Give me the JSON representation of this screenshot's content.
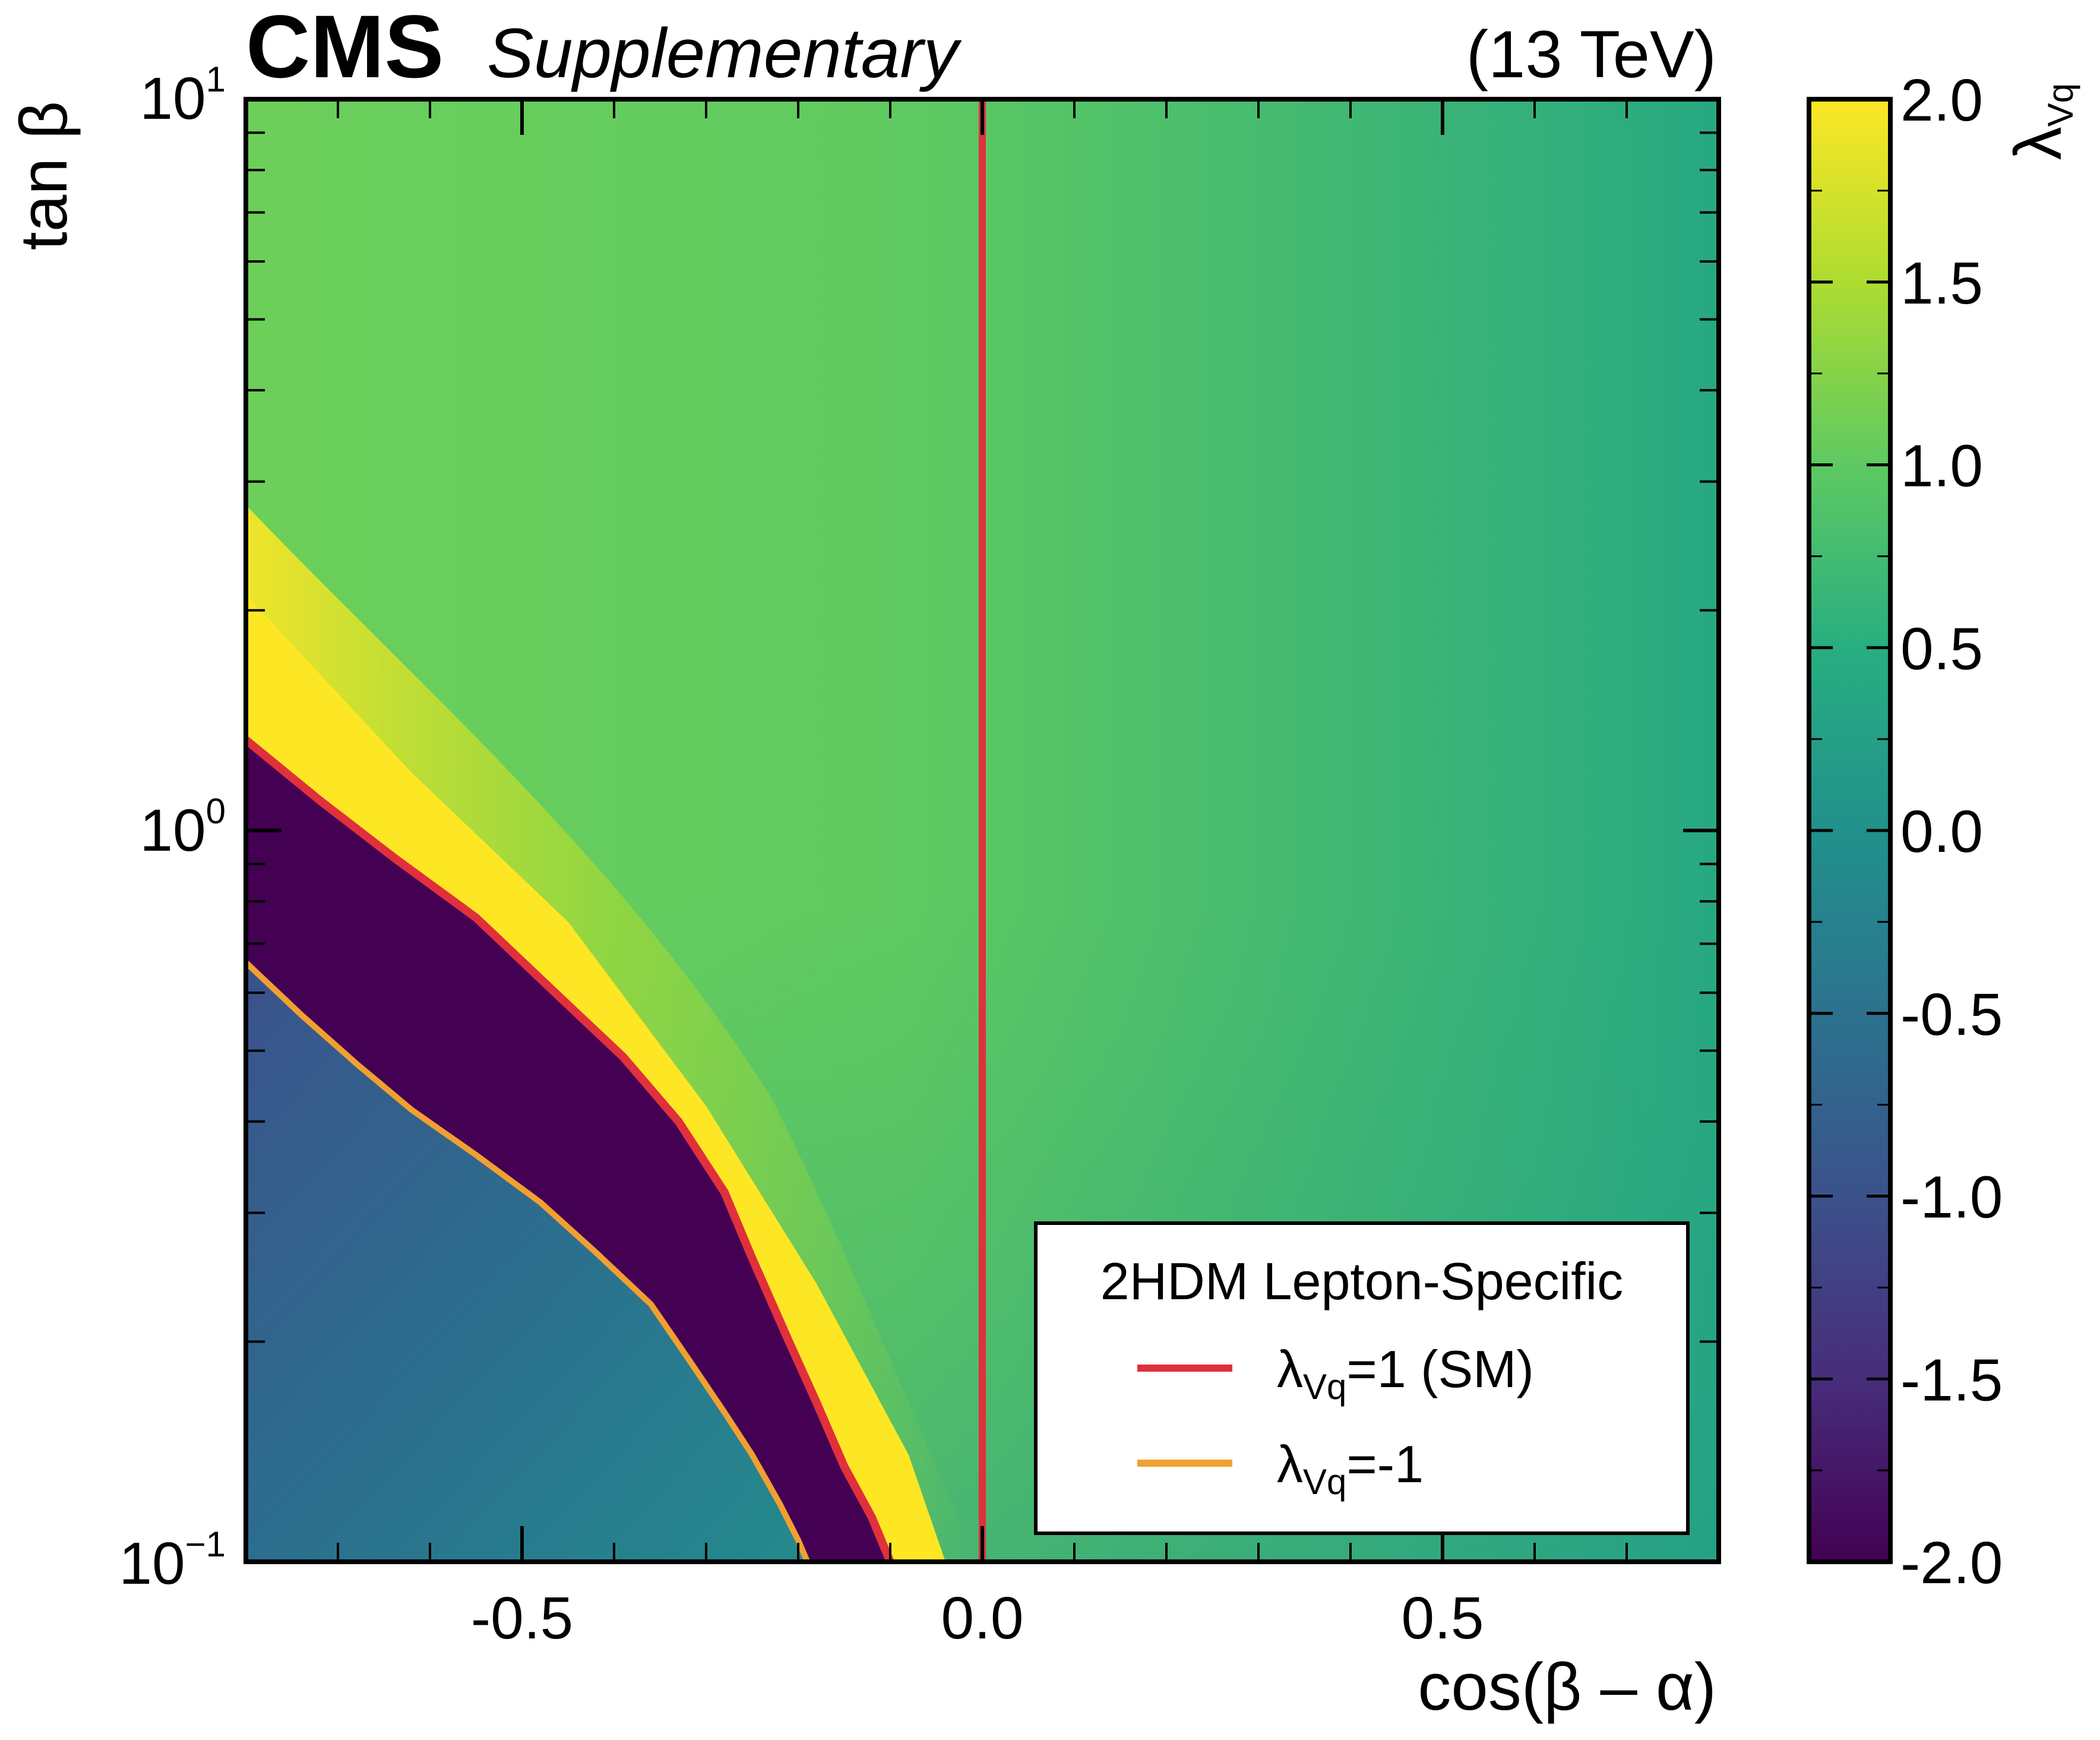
{
  "header": {
    "experiment": "CMS",
    "status": "Supplementary",
    "energy": "(13 TeV)"
  },
  "legend": {
    "title": "2HDM Lepton-Specific",
    "entries": [
      {
        "symbol": "λ",
        "subscript": "Vq",
        "suffix": "=1 (SM)",
        "color": "#e0303c"
      },
      {
        "symbol": "λ",
        "subscript": "Vq",
        "suffix": "=-1",
        "color": "#f0a030"
      }
    ]
  },
  "colorbar": {
    "label_symbol": "λ",
    "label_subscript": "Vq",
    "colormap": "viridis",
    "ticks": [
      "2.0",
      "1.5",
      "1.0",
      "0.5",
      "0.0",
      "-0.5",
      "-1.0",
      "-1.5",
      "-2.0"
    ]
  },
  "chart_data": {
    "type": "heatmap",
    "title": "",
    "xlabel": "cos(β – α)",
    "ylabel": "tan β",
    "xlim": [
      -0.8,
      0.8
    ],
    "ylim": [
      0.1,
      10
    ],
    "yscale": "log",
    "zlabel": "λVq",
    "zlim": [
      -2.0,
      2.0
    ],
    "x_ticks": [
      -0.5,
      0.0,
      0.5
    ],
    "x_tick_labels": [
      "-0.5",
      "0.0",
      "0.5"
    ],
    "y_ticks": [
      {
        "base": "10",
        "exp": "−1",
        "value": 0.1
      },
      {
        "base": "10",
        "exp": "0",
        "value": 1
      },
      {
        "base": "10",
        "exp": "1",
        "value": 10
      }
    ],
    "series": [
      {
        "name": "λVq=1 (SM)",
        "color": "#e0303c",
        "x": [
          0,
          0
        ],
        "y": [
          0.1,
          10
        ]
      },
      {
        "name": "λVq=1 (SM) boundary",
        "color": "#e0303c",
        "x": [
          -0.8,
          -0.72,
          -0.64,
          -0.55,
          -0.47,
          -0.39,
          -0.33,
          -0.28,
          -0.25,
          -0.21,
          -0.18,
          -0.15,
          -0.12,
          -0.1
        ],
        "y": [
          1.33,
          1.1,
          0.92,
          0.76,
          0.61,
          0.49,
          0.4,
          0.32,
          0.26,
          0.2,
          0.165,
          0.135,
          0.115,
          0.1
        ]
      },
      {
        "name": "λVq=-1",
        "color": "#f0a030",
        "x": [
          -0.8,
          -0.74,
          -0.68,
          -0.62,
          -0.55,
          -0.48,
          -0.42,
          -0.36,
          -0.32,
          -0.28,
          -0.25,
          -0.22,
          -0.2,
          -0.19
        ],
        "y": [
          0.66,
          0.56,
          0.48,
          0.415,
          0.36,
          0.31,
          0.265,
          0.225,
          0.19,
          0.16,
          0.14,
          0.12,
          0.107,
          0.1
        ]
      }
    ],
    "regions": [
      {
        "description": "dark purple band",
        "value": -2.0
      },
      {
        "description": "yellow band",
        "value": 2.0
      }
    ]
  }
}
